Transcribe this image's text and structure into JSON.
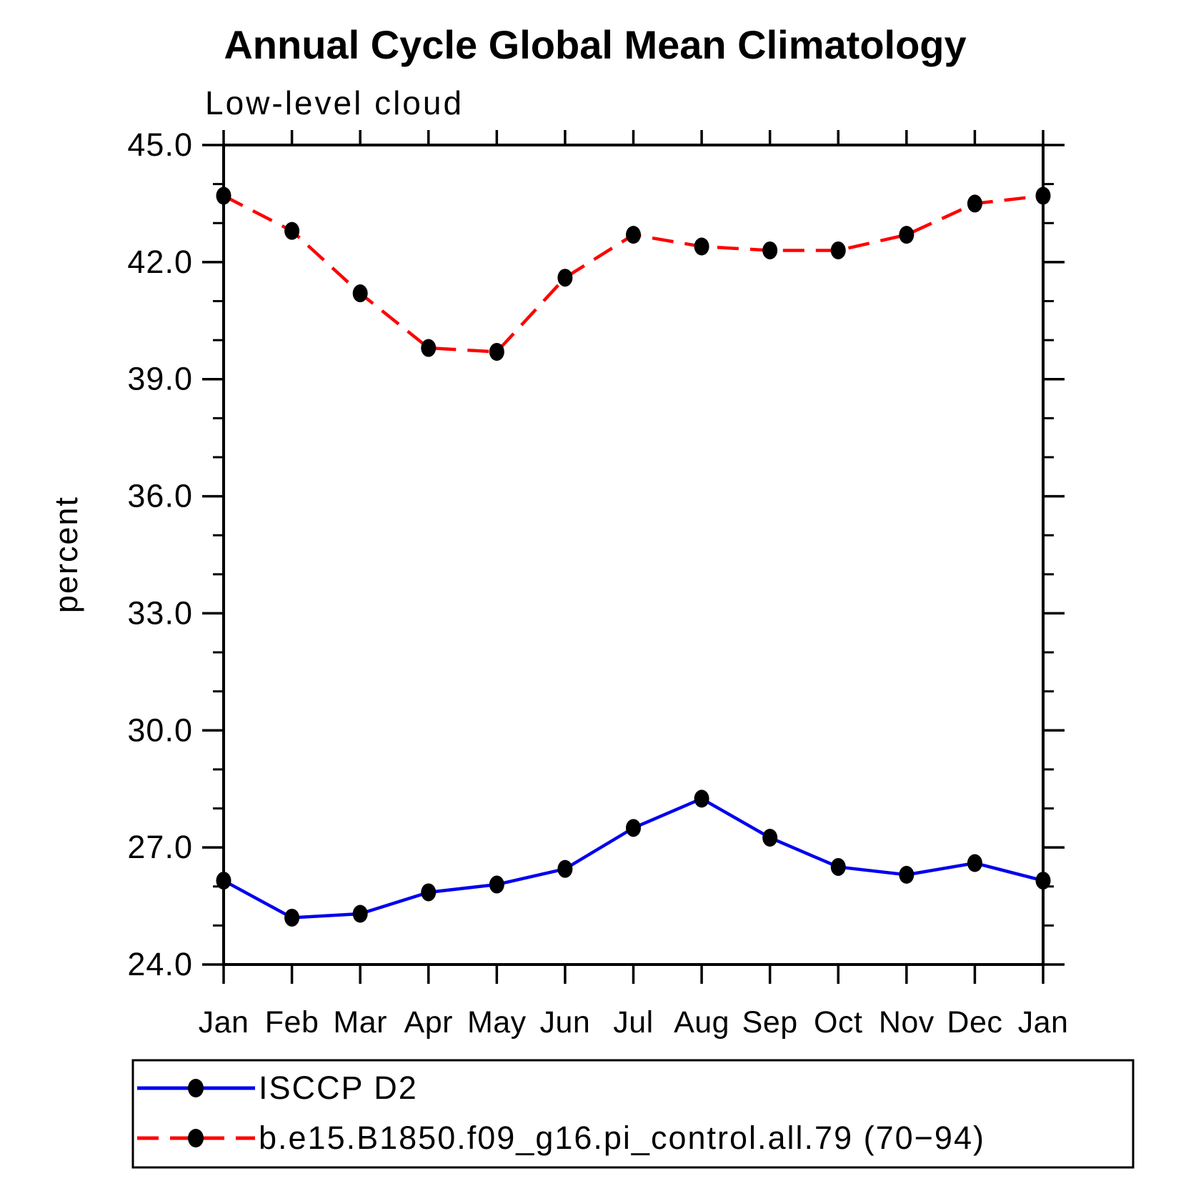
{
  "title": "Annual Cycle Global Mean Climatology",
  "subtitle": "Low-level cloud",
  "ylabel": "percent",
  "chart_data": {
    "type": "line",
    "title": "Annual Cycle Global Mean Climatology",
    "subtitle": "Low-level cloud",
    "xlabel": "",
    "ylabel": "percent",
    "categories": [
      "Jan",
      "Feb",
      "Mar",
      "Apr",
      "May",
      "Jun",
      "Jul",
      "Aug",
      "Sep",
      "Oct",
      "Nov",
      "Dec",
      "Jan"
    ],
    "series": [
      {
        "name": "ISCCP D2",
        "line_color": "#0000ee",
        "line_style": "solid",
        "marker_color": "#000000",
        "values": [
          26.15,
          25.2,
          25.3,
          25.85,
          26.05,
          26.45,
          27.5,
          28.25,
          27.25,
          26.5,
          26.3,
          26.6,
          26.15
        ]
      },
      {
        "name": "b.e15.B1850.f09_g16.pi_control.all.79 (70−94)",
        "line_color": "#ff0000",
        "line_style": "dashed",
        "marker_color": "#000000",
        "values": [
          43.7,
          42.8,
          41.2,
          39.8,
          39.7,
          41.6,
          42.7,
          42.4,
          42.3,
          42.3,
          42.7,
          43.5,
          43.7
        ]
      }
    ],
    "ylim": [
      24.0,
      45.0
    ],
    "yticks_major": [
      24.0,
      27.0,
      30.0,
      33.0,
      36.0,
      39.0,
      42.0,
      45.0
    ],
    "ytick_labels": [
      "24.0",
      "27.0",
      "30.0",
      "33.0",
      "36.0",
      "39.0",
      "42.0",
      "45.0"
    ],
    "yminor_step": 1.0,
    "grid": false,
    "legend_position": "bottom",
    "axis_color": "#000000",
    "background_color": "#ffffff"
  }
}
